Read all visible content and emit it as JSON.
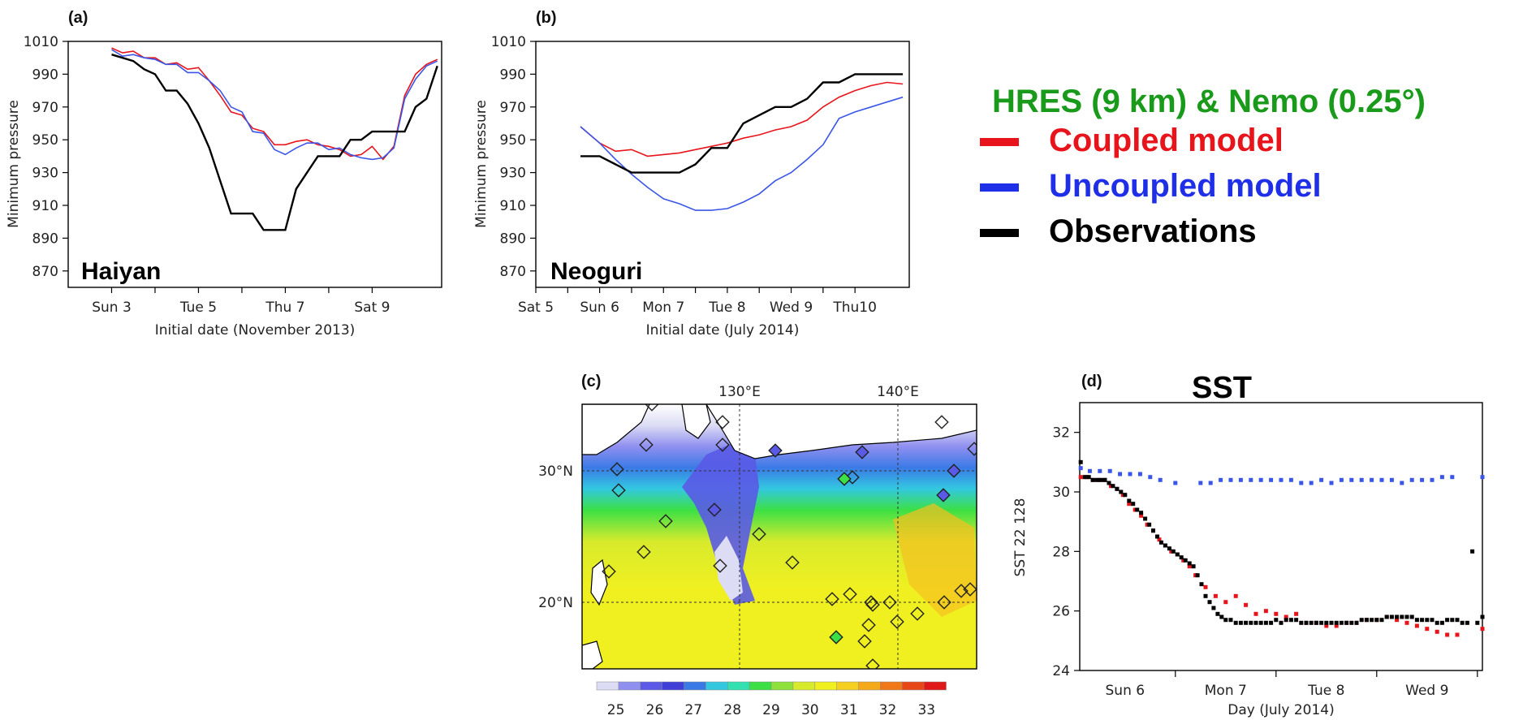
{
  "legend": {
    "title": "HRES (9 km) & Nemo (0.25°)",
    "items": [
      {
        "label": "Coupled model",
        "color": "#e8141b"
      },
      {
        "label": "Uncoupled model",
        "color": "#1f2fe8"
      },
      {
        "label": "Observations",
        "color": "#000000"
      }
    ]
  },
  "colors": {
    "coupled": "#e8141b",
    "uncoupled": "#3a56e8",
    "observed": "#000000"
  },
  "chart_data": [
    {
      "panel": "(a)",
      "type": "line",
      "annotation": "Haiyan",
      "ylabel": "Minimum pressure",
      "xlabel": "Initial date (November 2013)",
      "ylim": [
        860,
        1010
      ],
      "yticks": [
        870,
        890,
        910,
        930,
        950,
        970,
        990,
        1010
      ],
      "xlim": [
        2,
        10.6
      ],
      "xticks": [
        {
          "x": 3,
          "label": "Sun 3"
        },
        {
          "x": 5,
          "label": "Tue 5"
        },
        {
          "x": 7,
          "label": "Thu 7"
        },
        {
          "x": 9,
          "label": "Sat 9"
        }
      ],
      "series": [
        {
          "name": "Coupled model",
          "key": "coupled",
          "x": [
            3,
            3.25,
            3.5,
            3.75,
            4,
            4.25,
            4.5,
            4.75,
            5,
            5.25,
            5.5,
            5.75,
            6,
            6.25,
            6.5,
            6.75,
            7,
            7.25,
            7.5,
            7.75,
            8,
            8.25,
            8.5,
            8.75,
            9,
            9.25,
            9.5,
            9.75,
            10,
            10.25,
            10.5
          ],
          "y": [
            1006,
            1003,
            1004,
            1000,
            1000,
            996,
            997,
            993,
            994,
            986,
            977,
            967,
            965,
            957,
            955,
            947,
            947,
            949,
            950,
            947,
            946,
            944,
            940,
            941,
            946,
            938,
            946,
            977,
            990,
            996,
            999
          ]
        },
        {
          "name": "Uncoupled model",
          "key": "uncoupled",
          "x": [
            3,
            3.25,
            3.5,
            3.75,
            4,
            4.25,
            4.5,
            4.75,
            5,
            5.25,
            5.5,
            5.75,
            6,
            6.25,
            6.5,
            6.75,
            7,
            7.25,
            7.5,
            7.75,
            8,
            8.25,
            8.5,
            8.75,
            9,
            9.25,
            9.5,
            9.75,
            10,
            10.25,
            10.5
          ],
          "y": [
            1005,
            1001,
            1002,
            1000,
            999,
            996,
            996,
            991,
            991,
            986,
            980,
            970,
            967,
            955,
            954,
            944,
            941,
            945,
            948,
            948,
            944,
            945,
            941,
            939,
            938,
            939,
            945,
            975,
            987,
            995,
            998
          ]
        },
        {
          "name": "Observations",
          "key": "observed",
          "x": [
            3,
            3.25,
            3.5,
            3.75,
            4,
            4.25,
            4.5,
            4.75,
            5,
            5.25,
            5.5,
            5.75,
            6,
            6.25,
            6.5,
            6.75,
            7,
            7.25,
            7.5,
            7.75,
            8,
            8.25,
            8.5,
            8.75,
            9,
            9.25,
            9.5,
            9.75,
            10,
            10.25,
            10.5
          ],
          "y": [
            1002,
            1000,
            998,
            993,
            990,
            980,
            980,
            972,
            960,
            945,
            925,
            905,
            905,
            905,
            895,
            895,
            895,
            920,
            930,
            940,
            940,
            940,
            950,
            950,
            955,
            955,
            955,
            955,
            970,
            975,
            995
          ]
        }
      ]
    },
    {
      "panel": "(b)",
      "type": "line",
      "annotation": "Neoguri",
      "ylabel": "Minimum pressure",
      "xlabel": "Initial date (July 2014)",
      "ylim": [
        860,
        1010
      ],
      "yticks": [
        870,
        890,
        910,
        930,
        950,
        970,
        990,
        1010
      ],
      "xlim": [
        5,
        10.85
      ],
      "xticks": [
        {
          "x": 5,
          "label": "Sat 5"
        },
        {
          "x": 6,
          "label": "Sun 6"
        },
        {
          "x": 7,
          "label": "Mon 7"
        },
        {
          "x": 8,
          "label": "Tue 8"
        },
        {
          "x": 9,
          "label": "Wed 9"
        },
        {
          "x": 10,
          "label": "Thu10"
        }
      ],
      "series": [
        {
          "name": "Coupled model",
          "key": "coupled",
          "x": [
            5.7,
            6,
            6.25,
            6.5,
            6.75,
            7,
            7.25,
            7.5,
            7.75,
            8,
            8.25,
            8.5,
            8.75,
            9,
            9.25,
            9.5,
            9.75,
            10,
            10.25,
            10.5,
            10.75
          ],
          "y": [
            958,
            948,
            943,
            944,
            940,
            941,
            942,
            944,
            946,
            948,
            951,
            953,
            956,
            958,
            962,
            970,
            976,
            980,
            983,
            985,
            984
          ]
        },
        {
          "name": "Uncoupled model",
          "key": "uncoupled",
          "x": [
            5.7,
            6,
            6.25,
            6.5,
            6.75,
            7,
            7.25,
            7.5,
            7.75,
            8,
            8.25,
            8.5,
            8.75,
            9,
            9.25,
            9.5,
            9.75,
            10,
            10.25,
            10.5,
            10.75
          ],
          "y": [
            958,
            948,
            938,
            929,
            921,
            914,
            911,
            907,
            907,
            908,
            912,
            917,
            925,
            930,
            938,
            947,
            963,
            967,
            970,
            973,
            976
          ]
        },
        {
          "name": "Observations",
          "key": "observed",
          "x": [
            5.7,
            6,
            6.25,
            6.5,
            6.75,
            7,
            7.25,
            7.5,
            7.75,
            8,
            8.25,
            8.5,
            8.75,
            9,
            9.25,
            9.5,
            9.75,
            10,
            10.25,
            10.5,
            10.75
          ],
          "y": [
            940,
            940,
            935,
            930,
            930,
            930,
            930,
            935,
            945,
            945,
            960,
            965,
            970,
            970,
            975,
            985,
            985,
            990,
            990,
            990,
            990
          ]
        }
      ]
    },
    {
      "panel": "(c)",
      "type": "heatmap",
      "x_labels": [
        "130°E",
        "140°E"
      ],
      "y_labels": [
        "30°N",
        "20°N"
      ],
      "colorbar": [
        {
          "value": 25,
          "color": "#dcdcf5"
        },
        {
          "value": 25.5,
          "color": "#8f8ff0"
        },
        {
          "value": 26,
          "color": "#5a5ae6"
        },
        {
          "value": 26.5,
          "color": "#4040d8"
        },
        {
          "value": 27,
          "color": "#3a7ae6"
        },
        {
          "value": 27.5,
          "color": "#33c8e0"
        },
        {
          "value": 28,
          "color": "#33e0b0"
        },
        {
          "value": 28.5,
          "color": "#3ce046"
        },
        {
          "value": 29,
          "color": "#8ee03a"
        },
        {
          "value": 29.5,
          "color": "#d8ea2c"
        },
        {
          "value": 30,
          "color": "#f0f020"
        },
        {
          "value": 30.5,
          "color": "#f5d020"
        },
        {
          "value": 31,
          "color": "#f5a818"
        },
        {
          "value": 31.5,
          "color": "#f07818"
        },
        {
          "value": 32,
          "color": "#e84818"
        },
        {
          "value": 32.5,
          "color": "#e01818"
        }
      ],
      "colorbar_ticks": [
        "25",
        "26",
        "27",
        "28",
        "29",
        "30",
        "31",
        "32",
        "33"
      ]
    },
    {
      "panel": "(d)",
      "type": "scatter",
      "title": "SST",
      "ylabel": "SST 22 128",
      "xlabel": "Day (July 2014)",
      "ylim": [
        24,
        33
      ],
      "yticks": [
        24,
        26,
        28,
        30,
        32
      ],
      "xlim": [
        5.55,
        9.55
      ],
      "xticks": [
        {
          "x": 6,
          "label": "Sun 6"
        },
        {
          "x": 7,
          "label": "Mon 7"
        },
        {
          "x": 8,
          "label": "Tue 8"
        },
        {
          "x": 9,
          "label": "Wed 9"
        }
      ],
      "series": [
        {
          "name": "Uncoupled model",
          "key": "uncoupled",
          "x": [
            5.56,
            5.65,
            5.75,
            5.85,
            5.95,
            6.05,
            6.15,
            6.25,
            6.35,
            6.5,
            6.75,
            6.85,
            6.95,
            7.05,
            7.15,
            7.25,
            7.35,
            7.45,
            7.55,
            7.65,
            7.75,
            7.85,
            7.95,
            8.05,
            8.15,
            8.25,
            8.35,
            8.45,
            8.55,
            8.65,
            8.75,
            8.85,
            8.95,
            9.05,
            9.15,
            9.25,
            9.55
          ],
          "y": [
            30.8,
            30.7,
            30.7,
            30.7,
            30.6,
            30.6,
            30.6,
            30.5,
            30.4,
            30.3,
            30.3,
            30.3,
            30.4,
            30.4,
            30.4,
            30.4,
            30.4,
            30.4,
            30.4,
            30.4,
            30.3,
            30.3,
            30.4,
            30.3,
            30.4,
            30.4,
            30.4,
            30.4,
            30.4,
            30.4,
            30.3,
            30.4,
            30.4,
            30.4,
            30.5,
            30.5,
            30.5
          ]
        },
        {
          "name": "Coupled model",
          "key": "coupled",
          "x": [
            5.56,
            5.62,
            5.68,
            5.74,
            5.8,
            5.86,
            5.92,
            5.98,
            6.04,
            6.1,
            6.16,
            6.22,
            6.28,
            6.34,
            6.4,
            6.46,
            6.52,
            6.58,
            6.64,
            6.7,
            6.8,
            6.9,
            7.0,
            7.1,
            7.2,
            7.3,
            7.4,
            7.5,
            7.6,
            7.7,
            7.8,
            7.9,
            8.0,
            8.1,
            8.2,
            8.3,
            8.4,
            8.5,
            8.6,
            8.7,
            8.8,
            8.9,
            9.0,
            9.1,
            9.2,
            9.3,
            9.55
          ],
          "y": [
            30.5,
            30.5,
            30.4,
            30.4,
            30.4,
            30.2,
            30.1,
            29.9,
            29.6,
            29.4,
            29.2,
            28.9,
            28.7,
            28.4,
            28.2,
            28.0,
            27.9,
            27.7,
            27.5,
            27.2,
            26.8,
            26.5,
            26.3,
            26.5,
            26.2,
            25.9,
            26.0,
            25.9,
            25.8,
            25.9,
            25.6,
            25.6,
            25.5,
            25.5,
            25.6,
            25.6,
            25.7,
            25.7,
            25.8,
            25.7,
            25.6,
            25.5,
            25.4,
            25.3,
            25.2,
            25.2,
            25.4
          ]
        },
        {
          "name": "Observations",
          "key": "observed",
          "x": [
            5.56,
            5.6,
            5.64,
            5.68,
            5.72,
            5.76,
            5.8,
            5.84,
            5.88,
            5.92,
            5.96,
            6.0,
            6.04,
            6.08,
            6.12,
            6.16,
            6.2,
            6.24,
            6.28,
            6.32,
            6.36,
            6.4,
            6.44,
            6.48,
            6.52,
            6.56,
            6.6,
            6.64,
            6.68,
            6.72,
            6.76,
            6.8,
            6.84,
            6.88,
            6.92,
            6.96,
            7.0,
            7.05,
            7.1,
            7.15,
            7.2,
            7.25,
            7.3,
            7.35,
            7.4,
            7.45,
            7.5,
            7.55,
            7.6,
            7.65,
            7.7,
            7.75,
            7.8,
            7.85,
            7.9,
            7.95,
            8.0,
            8.05,
            8.1,
            8.15,
            8.2,
            8.25,
            8.3,
            8.35,
            8.4,
            8.45,
            8.5,
            8.55,
            8.6,
            8.65,
            8.7,
            8.75,
            8.8,
            8.85,
            8.9,
            8.95,
            9.0,
            9.05,
            9.1,
            9.15,
            9.2,
            9.25,
            9.3,
            9.35,
            9.4,
            9.45,
            9.5,
            9.55
          ],
          "y": [
            31.0,
            30.5,
            30.5,
            30.4,
            30.4,
            30.4,
            30.4,
            30.3,
            30.2,
            30.1,
            30.0,
            29.9,
            29.7,
            29.6,
            29.4,
            29.3,
            29.1,
            28.9,
            28.7,
            28.5,
            28.3,
            28.2,
            28.1,
            28.0,
            27.9,
            27.8,
            27.7,
            27.6,
            27.5,
            27.2,
            26.9,
            26.5,
            26.3,
            26.1,
            25.9,
            25.8,
            25.7,
            25.7,
            25.6,
            25.6,
            25.6,
            25.6,
            25.6,
            25.6,
            25.6,
            25.6,
            25.7,
            25.6,
            25.7,
            25.7,
            25.7,
            25.6,
            25.6,
            25.6,
            25.6,
            25.6,
            25.6,
            25.6,
            25.6,
            25.6,
            25.6,
            25.6,
            25.6,
            25.7,
            25.7,
            25.7,
            25.7,
            25.7,
            25.8,
            25.8,
            25.8,
            25.8,
            25.8,
            25.8,
            25.7,
            25.7,
            25.7,
            25.7,
            25.6,
            25.6,
            25.7,
            25.7,
            25.7,
            25.6,
            25.6,
            28.0,
            25.6,
            25.8
          ]
        }
      ]
    }
  ]
}
